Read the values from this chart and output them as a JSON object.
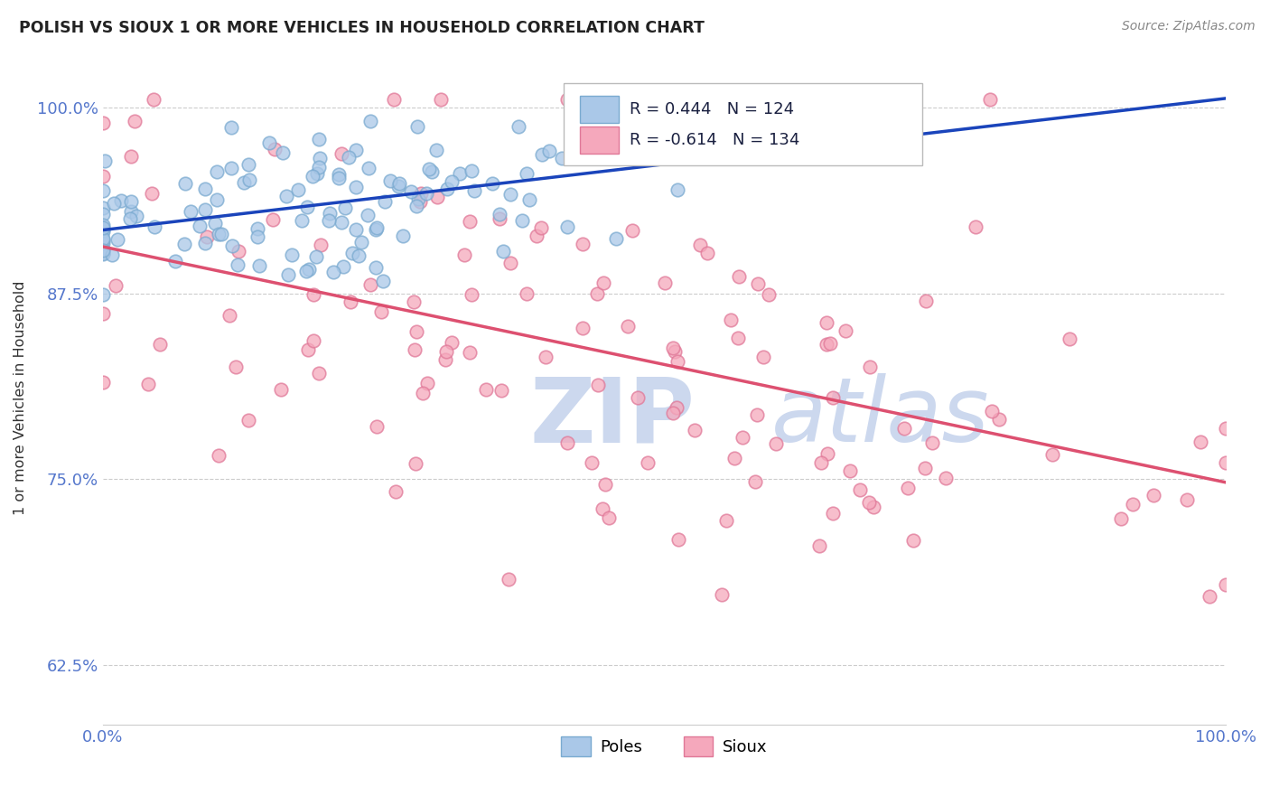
{
  "title": "POLISH VS SIOUX 1 OR MORE VEHICLES IN HOUSEHOLD CORRELATION CHART",
  "source_text": "Source: ZipAtlas.com",
  "ylabel": "1 or more Vehicles in Household",
  "x_min": 0.0,
  "x_max": 1.0,
  "y_min": 0.585,
  "y_max": 1.025,
  "x_tick_labels": [
    "0.0%",
    "100.0%"
  ],
  "y_ticks": [
    0.625,
    0.75,
    0.875,
    1.0
  ],
  "y_tick_labels": [
    "62.5%",
    "75.0%",
    "87.5%",
    "100.0%"
  ],
  "poles_color": "#aac8e8",
  "sioux_color": "#f5a8bc",
  "poles_edge_color": "#7aaad0",
  "sioux_edge_color": "#e07898",
  "trend_poles_color": "#1a44bb",
  "trend_sioux_color": "#dd5070",
  "legend_text_color": "#1a2040",
  "poles_R": 0.444,
  "poles_N": 124,
  "sioux_R": -0.614,
  "sioux_N": 134,
  "legend_label_poles": "Poles",
  "legend_label_sioux": "Sioux",
  "watermark_zip": "ZIP",
  "watermark_atlas": "atlas",
  "watermark_color": "#ccd8ee",
  "background_color": "#ffffff",
  "grid_color": "#cccccc",
  "grid_linestyle": "--",
  "title_color": "#222222",
  "axis_label_color": "#333333",
  "tick_label_color": "#5577cc",
  "source_color": "#888888",
  "marker_size": 110,
  "marker_linewidth": 1.2
}
